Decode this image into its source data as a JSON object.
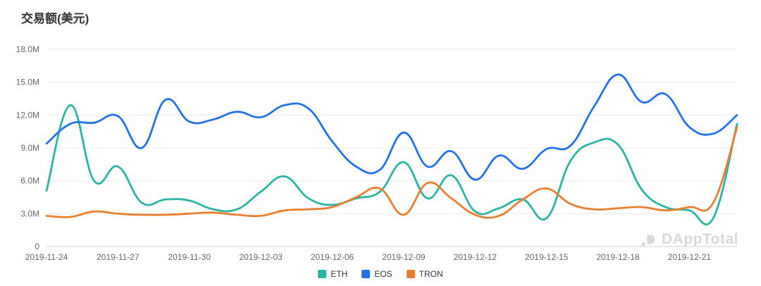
{
  "title": "交易额(美元)",
  "watermark": {
    "logo_icon": "dapptotal-logo",
    "text": "DAppTotal"
  },
  "colors": {
    "eth": "#2bb5a3",
    "eos": "#2472eb",
    "tron": "#e8802f",
    "grid": "#e9e9e9",
    "axis": "#cccccc",
    "tick_text": "#666666"
  },
  "chart_data": {
    "type": "line",
    "title": "交易额(美元)",
    "value_unit": "million USD",
    "smooth": true,
    "grid": true,
    "legend_position": "bottom",
    "ylim": [
      0,
      18
    ],
    "y_ticks": [
      {
        "label": "0",
        "value": 0
      },
      {
        "label": "3.0M",
        "value": 3
      },
      {
        "label": "6.0M",
        "value": 6
      },
      {
        "label": "9.0M",
        "value": 9
      },
      {
        "label": "12.0M",
        "value": 12
      },
      {
        "label": "15.0M",
        "value": 15
      },
      {
        "label": "18.0M",
        "value": 18
      }
    ],
    "x": [
      "2019-11-24",
      "2019-11-25",
      "2019-11-26",
      "2019-11-27",
      "2019-11-28",
      "2019-11-29",
      "2019-11-30",
      "2019-12-01",
      "2019-12-02",
      "2019-12-03",
      "2019-12-04",
      "2019-12-05",
      "2019-12-06",
      "2019-12-07",
      "2019-12-08",
      "2019-12-09",
      "2019-12-10",
      "2019-12-11",
      "2019-12-12",
      "2019-12-13",
      "2019-12-14",
      "2019-12-15",
      "2019-12-16",
      "2019-12-17",
      "2019-12-18",
      "2019-12-19",
      "2019-12-20",
      "2019-12-21",
      "2019-12-22",
      "2019-12-23"
    ],
    "x_tick_labels": [
      "2019-11-24",
      "2019-11-27",
      "2019-11-30",
      "2019-12-03",
      "2019-12-06",
      "2019-12-09",
      "2019-12-12",
      "2019-12-15",
      "2019-12-18",
      "2019-12-21"
    ],
    "series": [
      {
        "name": "ETH",
        "color": "#2bb5a3",
        "values": [
          5.1,
          12.9,
          6.0,
          7.3,
          4.0,
          4.3,
          4.2,
          3.4,
          3.4,
          5.0,
          6.4,
          4.4,
          3.8,
          4.4,
          5.0,
          7.7,
          4.4,
          6.5,
          3.2,
          3.5,
          4.3,
          2.6,
          7.8,
          9.5,
          9.3,
          5.2,
          3.6,
          3.3,
          2.6,
          11.2
        ]
      },
      {
        "name": "EOS",
        "color": "#2472eb",
        "values": [
          9.4,
          11.2,
          11.3,
          11.9,
          9.0,
          13.4,
          11.4,
          11.6,
          12.3,
          11.8,
          12.9,
          12.6,
          9.6,
          7.3,
          7.0,
          10.4,
          7.3,
          8.7,
          6.1,
          8.3,
          7.1,
          8.9,
          9.2,
          12.8,
          15.7,
          13.2,
          13.9,
          10.9,
          10.3,
          12.0
        ]
      },
      {
        "name": "TRON",
        "color": "#e8802f",
        "values": [
          2.8,
          2.7,
          3.2,
          3.0,
          2.9,
          2.9,
          3.0,
          3.1,
          2.9,
          2.8,
          3.3,
          3.4,
          3.6,
          4.5,
          5.3,
          2.9,
          5.8,
          4.4,
          2.9,
          2.8,
          4.3,
          5.3,
          3.9,
          3.4,
          3.5,
          3.6,
          3.3,
          3.6,
          4.0,
          10.9
        ]
      }
    ]
  }
}
